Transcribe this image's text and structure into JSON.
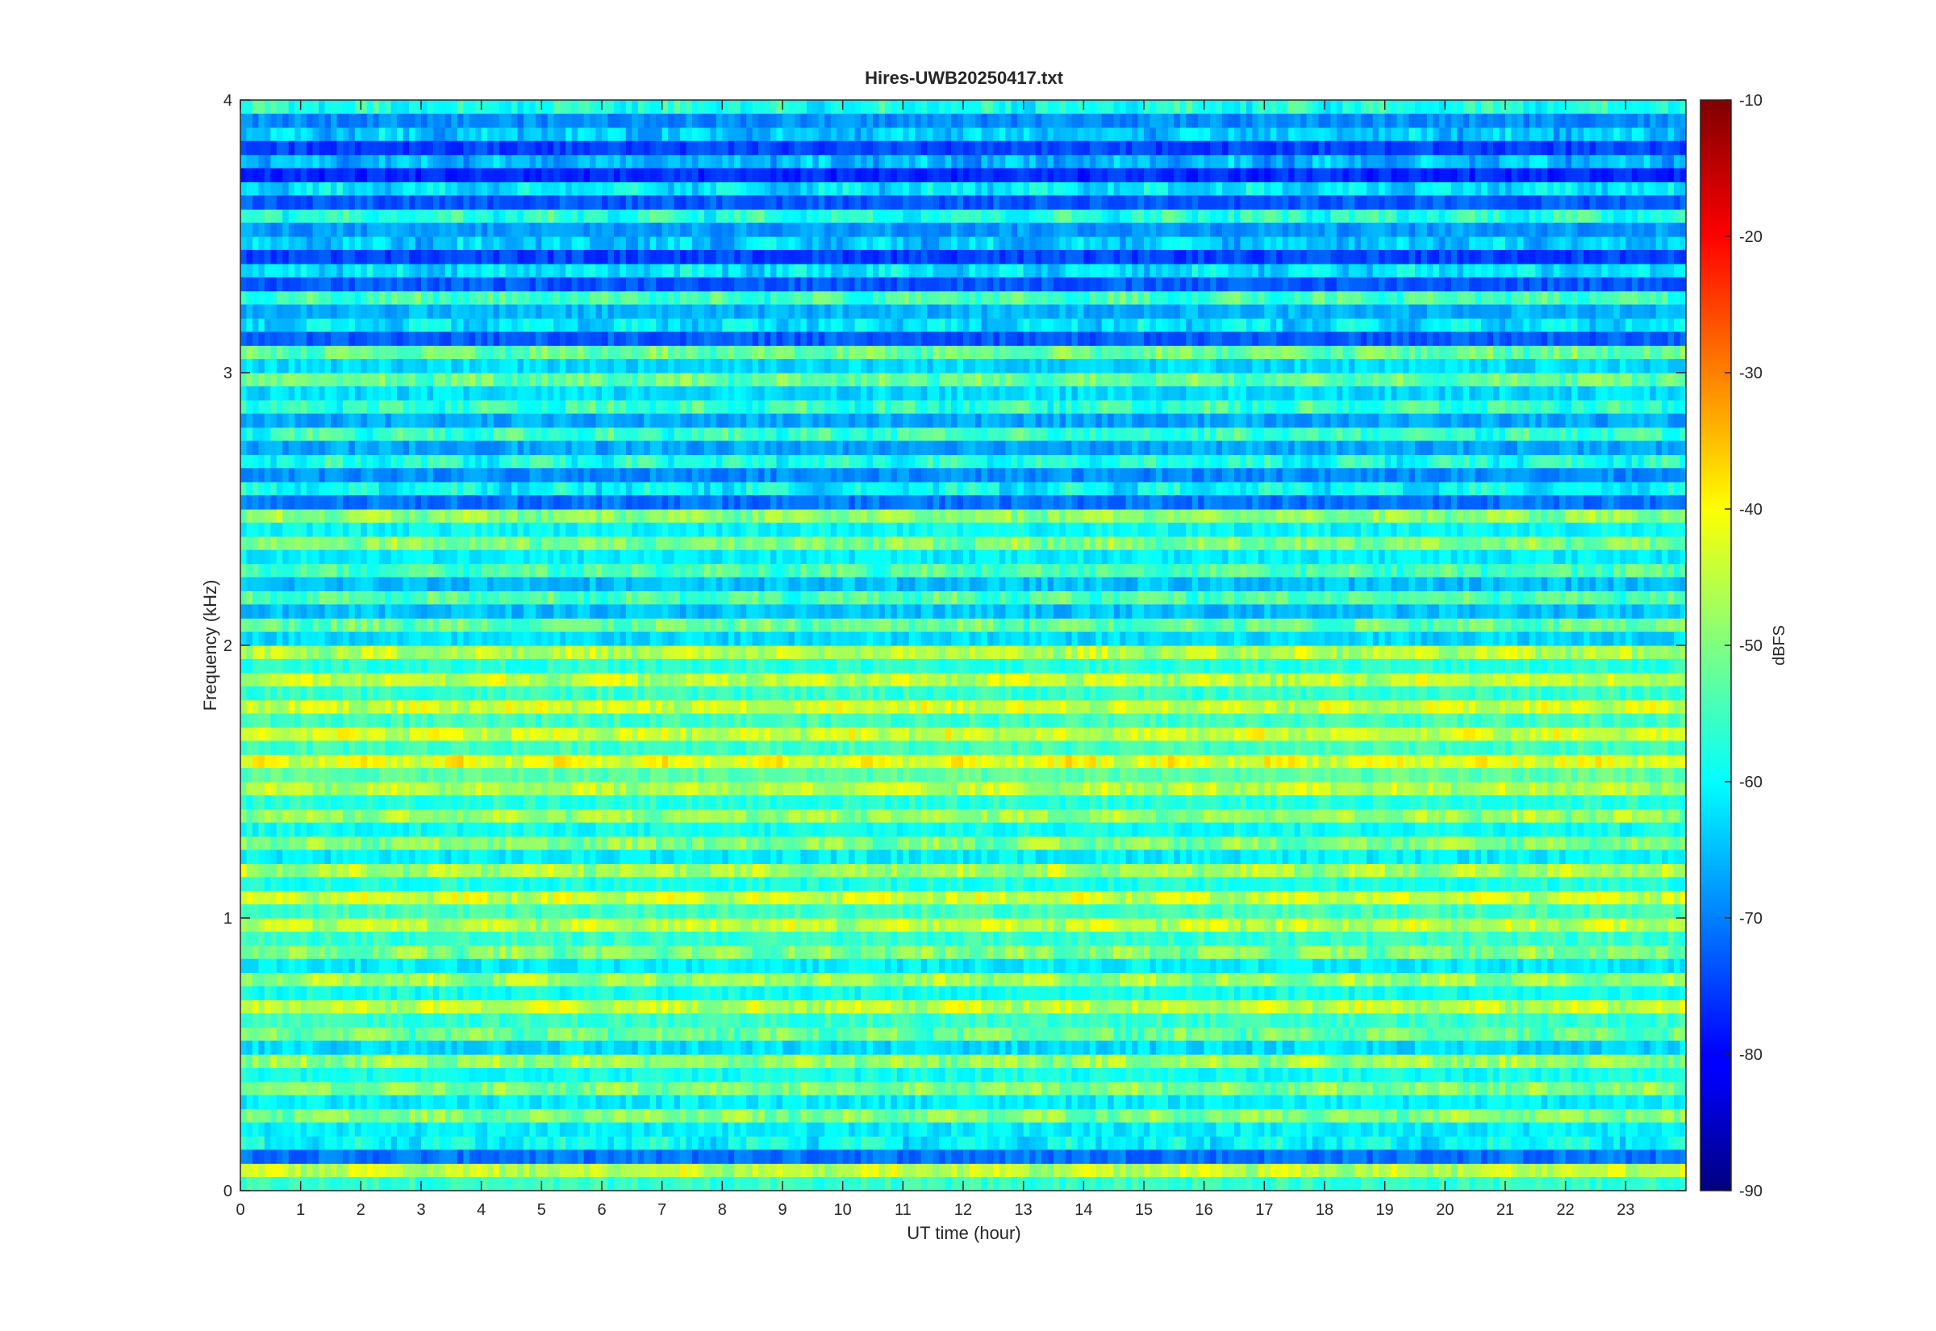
{
  "chart_data": {
    "type": "heatmap",
    "title": "Hires-UWB20250417.txt",
    "xlabel": "UT time (hour)",
    "ylabel": "Frequency (kHz)",
    "colorbar_label": "dBFS",
    "xlim": [
      0,
      24
    ],
    "ylim": [
      0,
      4
    ],
    "clim": [
      -90,
      -10
    ],
    "x_ticks": [
      0,
      1,
      2,
      3,
      4,
      5,
      6,
      7,
      8,
      9,
      10,
      11,
      12,
      13,
      14,
      15,
      16,
      17,
      18,
      19,
      20,
      21,
      22,
      23
    ],
    "y_ticks": [
      0,
      1,
      2,
      3,
      4
    ],
    "colorbar_ticks": [
      -10,
      -20,
      -30,
      -40,
      -50,
      -60,
      -70,
      -80,
      -90
    ],
    "colormap": "jet",
    "grid": false,
    "bands_khz": [
      {
        "f": 0.05,
        "level": -45
      },
      {
        "f": 0.15,
        "level": -60
      },
      {
        "f": 0.25,
        "level": -50
      },
      {
        "f": 0.35,
        "level": -50
      },
      {
        "f": 0.45,
        "level": -48
      },
      {
        "f": 0.55,
        "level": -52
      },
      {
        "f": 0.65,
        "level": -45
      },
      {
        "f": 0.75,
        "level": -48
      },
      {
        "f": 0.85,
        "level": -50
      },
      {
        "f": 0.95,
        "level": -45
      },
      {
        "f": 1.05,
        "level": -44
      },
      {
        "f": 1.15,
        "level": -47
      },
      {
        "f": 1.25,
        "level": -50
      },
      {
        "f": 1.35,
        "level": -48
      },
      {
        "f": 1.45,
        "level": -46
      },
      {
        "f": 1.55,
        "level": -42
      },
      {
        "f": 1.65,
        "level": -44
      },
      {
        "f": 1.75,
        "level": -44
      },
      {
        "f": 1.85,
        "level": -45
      },
      {
        "f": 1.95,
        "level": -46
      },
      {
        "f": 2.05,
        "level": -52
      },
      {
        "f": 2.15,
        "level": -54
      },
      {
        "f": 2.25,
        "level": -54
      },
      {
        "f": 2.35,
        "level": -50
      },
      {
        "f": 2.45,
        "level": -49
      },
      {
        "f": 2.55,
        "level": -60
      },
      {
        "f": 2.65,
        "level": -58
      },
      {
        "f": 2.75,
        "level": -56
      },
      {
        "f": 2.85,
        "level": -56
      },
      {
        "f": 2.95,
        "level": -52
      },
      {
        "f": 3.05,
        "level": -52
      },
      {
        "f": 3.15,
        "level": -62
      },
      {
        "f": 3.25,
        "level": -55
      },
      {
        "f": 3.35,
        "level": -62
      },
      {
        "f": 3.45,
        "level": -64
      },
      {
        "f": 3.55,
        "level": -57
      },
      {
        "f": 3.65,
        "level": -62
      },
      {
        "f": 3.75,
        "level": -66
      },
      {
        "f": 3.85,
        "level": -64
      },
      {
        "f": 3.95,
        "level": -58
      }
    ]
  }
}
